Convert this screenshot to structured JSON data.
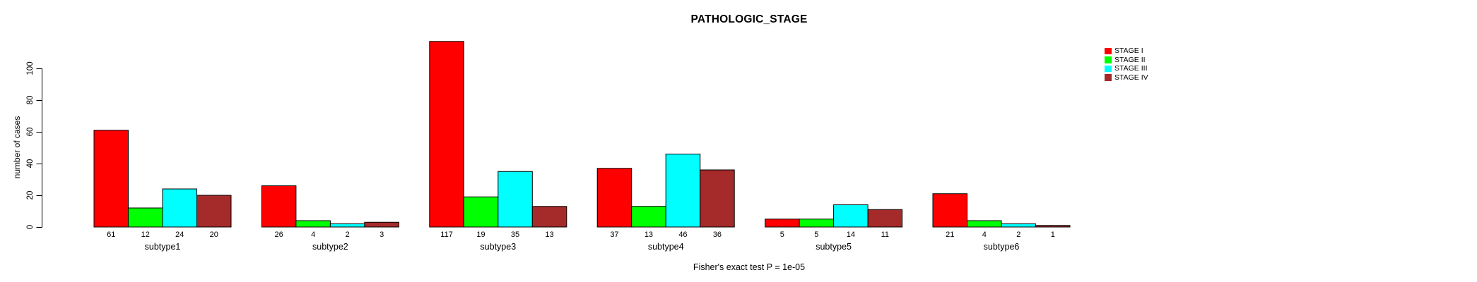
{
  "chart_data": {
    "type": "bar",
    "title": "PATHOLOGIC_STAGE",
    "ylabel": "number of cases",
    "xlabel": "",
    "categories": [
      "subtype1",
      "subtype2",
      "subtype3",
      "subtype4",
      "subtype5",
      "subtype6"
    ],
    "series": [
      {
        "name": "STAGE I",
        "color": "#FF0000",
        "values": [
          61,
          26,
          117,
          37,
          5,
          21
        ]
      },
      {
        "name": "STAGE II",
        "color": "#00FF00",
        "values": [
          12,
          4,
          19,
          13,
          5,
          4
        ]
      },
      {
        "name": "STAGE III",
        "color": "#00FFFF",
        "values": [
          24,
          2,
          35,
          46,
          14,
          2
        ]
      },
      {
        "name": "STAGE IV",
        "color": "#A52A2A",
        "values": [
          20,
          3,
          13,
          36,
          11,
          1
        ]
      }
    ],
    "yticks": [
      0,
      20,
      40,
      60,
      80,
      100
    ],
    "ylim": [
      0,
      117
    ],
    "bar_value_labels_shown": true,
    "annotation": "Fisher's exact test P = 1e-05",
    "legend_position": "top-right",
    "grid": false,
    "bar_border_color": "#000000",
    "axis_color": "#000000",
    "background_color": "#FFFFFF"
  }
}
